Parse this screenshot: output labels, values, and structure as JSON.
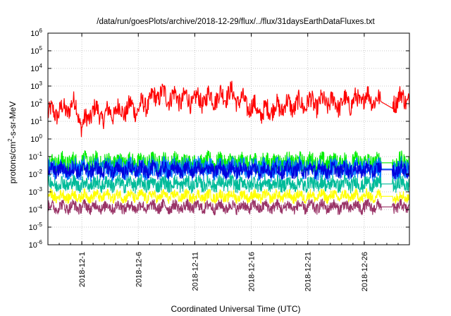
{
  "chart_data": {
    "type": "line",
    "title": "/data/run/goesPlots/archive/2018-12-29/flux/../flux/31daysEarthDataFluxes.txt",
    "xlabel": "Coordinated Universal Time (UTC)",
    "ylabel": "protons/cm²-s-sr-MeV",
    "ylabel_parts": {
      "pre": "protons/cm",
      "sup": "2",
      "post": "-s-sr-MeV"
    },
    "yscale": "log",
    "ylim_exponents": [
      -6,
      6
    ],
    "yticks": [
      {
        "base": "10",
        "exp": "-6"
      },
      {
        "base": "10",
        "exp": "-5"
      },
      {
        "base": "10",
        "exp": "-4"
      },
      {
        "base": "10",
        "exp": "-3"
      },
      {
        "base": "10",
        "exp": "-2"
      },
      {
        "base": "10",
        "exp": "-1"
      },
      {
        "base": "10",
        "exp": "0"
      },
      {
        "base": "10",
        "exp": "1"
      },
      {
        "base": "10",
        "exp": "2"
      },
      {
        "base": "10",
        "exp": "3"
      },
      {
        "base": "10",
        "exp": "4"
      },
      {
        "base": "10",
        "exp": "5"
      },
      {
        "base": "10",
        "exp": "6"
      }
    ],
    "xlim": [
      "2018-11-28",
      "2018-12-30"
    ],
    "xticks": [
      "2018-12-1",
      "2018-12-6",
      "2018-12-11",
      "2018-12-16",
      "2018-12-21",
      "2018-12-26"
    ],
    "grid": true,
    "legend": "none",
    "data_gap": [
      "2018-12-27 12:00",
      "2018-12-28 12:00"
    ],
    "series": [
      {
        "color": "#ff0000",
        "style": "noisy",
        "points": [
          [
            0,
            1.3
          ],
          [
            0.5,
            1.6
          ],
          [
            1,
            1.5
          ],
          [
            1.5,
            1.7
          ],
          [
            2,
            1.8
          ],
          [
            2.5,
            2.0
          ],
          [
            3,
            0.6
          ],
          [
            3.5,
            1.2
          ],
          [
            4,
            1.6
          ],
          [
            4.5,
            1.5
          ],
          [
            5,
            1.2
          ],
          [
            5.5,
            1.6
          ],
          [
            6,
            1.5
          ],
          [
            6.5,
            1.7
          ],
          [
            7,
            1.6
          ],
          [
            7.5,
            1.9
          ],
          [
            8,
            1.6
          ],
          [
            8.5,
            2.0
          ],
          [
            9,
            2.1
          ],
          [
            9.5,
            2.4
          ],
          [
            10,
            2.6
          ],
          [
            10.5,
            2.3
          ],
          [
            11,
            2.5
          ],
          [
            11.5,
            2.2
          ],
          [
            12,
            2.4
          ],
          [
            12.5,
            2.1
          ],
          [
            13,
            2.3
          ],
          [
            13.5,
            2.1
          ],
          [
            14,
            2.3
          ],
          [
            14.5,
            2.4
          ],
          [
            15,
            2.3
          ],
          [
            15.5,
            2.5
          ],
          [
            16,
            2.6
          ],
          [
            16.5,
            2.4
          ],
          [
            17,
            2.2
          ],
          [
            17.5,
            2.0
          ],
          [
            18,
            1.8
          ],
          [
            18.5,
            1.7
          ],
          [
            19,
            1.4
          ],
          [
            19.5,
            1.7
          ],
          [
            20,
            1.8
          ],
          [
            20.5,
            1.7
          ],
          [
            21,
            2.0
          ],
          [
            21.5,
            1.8
          ],
          [
            22,
            2.0
          ],
          [
            22.5,
            1.9
          ],
          [
            23,
            2.1
          ],
          [
            23.5,
            2.0
          ],
          [
            24,
            2.0
          ],
          [
            24.5,
            2.1
          ],
          [
            25,
            2.1
          ],
          [
            25.5,
            2.0
          ],
          [
            26,
            2.0
          ],
          [
            26.5,
            2.1
          ],
          [
            27,
            2.1
          ],
          [
            27.5,
            2.2
          ],
          [
            28,
            2.3
          ],
          [
            28.5,
            2.4
          ],
          [
            29,
            2.2
          ],
          [
            29.5,
            2.0
          ],
          [
            30,
            2.1
          ],
          [
            30.5,
            2.2
          ],
          [
            31,
            2.3
          ],
          [
            31.5,
            2.3
          ]
        ],
        "amp": 0.55
      },
      {
        "color": "#00ee00",
        "style": "band",
        "center": -1.35,
        "amp": 0.55
      },
      {
        "color": "#0077ff",
        "style": "band",
        "center": -1.7,
        "amp": 0.6
      },
      {
        "color": "#0000dd",
        "style": "band",
        "center": -1.75,
        "amp": 0.4
      },
      {
        "color": "#00bb99",
        "style": "band",
        "center": -2.55,
        "amp": 0.4
      },
      {
        "color": "#ffff00",
        "style": "band",
        "center": -3.25,
        "amp": 0.3
      },
      {
        "color": "#993366",
        "style": "band",
        "center": -3.85,
        "amp": 0.32
      }
    ]
  }
}
